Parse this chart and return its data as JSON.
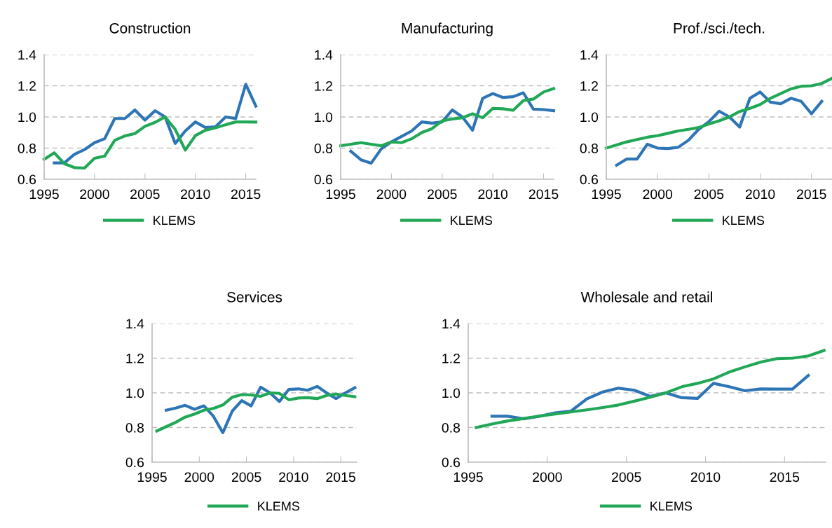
{
  "chart_data": [
    {
      "type": "line",
      "title": "Construction",
      "xlim": [
        1995,
        2016
      ],
      "xticks": [
        1995,
        2000,
        2005,
        2010,
        2015
      ],
      "ylim": [
        0.6,
        1.4
      ],
      "yticks": [
        {
          "value": 0.6,
          "label": "0.6"
        },
        {
          "value": 0.8,
          "label": "0.8"
        },
        {
          "value": 1.0,
          "label": "1.0"
        },
        {
          "value": 1.2,
          "label": "1.2"
        },
        {
          "value": 1.4,
          "label": "1.4"
        }
      ],
      "grid": "y",
      "legend": "bottom",
      "series": [
        {
          "color": "#2e75b6",
          "x": [
            1996,
            1997,
            1998,
            1999,
            2000,
            2001,
            2002,
            2003,
            2004,
            2005,
            2006,
            2007,
            2008,
            2009,
            2010,
            2011,
            2012,
            2013,
            2014,
            2015,
            2016
          ],
          "values": [
            0.705,
            0.705,
            0.76,
            0.79,
            0.835,
            0.86,
            0.99,
            0.99,
            1.045,
            0.98,
            1.04,
            1.0,
            0.83,
            0.91,
            0.968,
            0.932,
            0.937,
            1.0,
            0.99,
            1.21,
            1.07
          ]
        },
        {
          "name": "KLEMS",
          "color": "#21a857",
          "x": [
            1995,
            1996,
            1997,
            1998,
            1999,
            2000,
            2001,
            2002,
            2003,
            2004,
            2005,
            2006,
            2007,
            2008,
            2009,
            2010,
            2011,
            2012,
            2013,
            2014,
            2015,
            2016
          ],
          "values": [
            0.728,
            0.77,
            0.7,
            0.675,
            0.672,
            0.735,
            0.748,
            0.85,
            0.878,
            0.893,
            0.94,
            0.965,
            1.0,
            0.92,
            0.787,
            0.88,
            0.915,
            0.93,
            0.95,
            0.968,
            0.968,
            0.967
          ]
        }
      ]
    },
    {
      "type": "line",
      "title": "Manufacturing",
      "xlim": [
        1995,
        2016
      ],
      "xticks": [
        1995,
        2000,
        2005,
        2010,
        2015
      ],
      "ylim": [
        0.6,
        1.4
      ],
      "yticks": [
        {
          "value": 0.6,
          "label": "0.6"
        },
        {
          "value": 0.8,
          "label": "0.8"
        },
        {
          "value": 1.0,
          "label": "1.0"
        },
        {
          "value": 1.2,
          "label": "1.2"
        },
        {
          "value": 1.4,
          "label": "1.4"
        }
      ],
      "grid": "y",
      "legend": "bottom",
      "series": [
        {
          "color": "#2e75b6",
          "x": [
            1996,
            1997,
            1998,
            1999,
            2000,
            2001,
            2002,
            2003,
            2004,
            2005,
            2006,
            2007,
            2008,
            2009,
            2010,
            2011,
            2012,
            2013,
            2014,
            2015,
            2016
          ],
          "values": [
            0.78,
            0.725,
            0.703,
            0.795,
            0.84,
            0.875,
            0.91,
            0.968,
            0.96,
            0.968,
            1.045,
            1.0,
            0.915,
            1.12,
            1.15,
            1.125,
            1.13,
            1.155,
            1.05,
            1.047,
            1.04
          ]
        },
        {
          "name": "KLEMS",
          "color": "#21a857",
          "x": [
            1995,
            1996,
            1997,
            1998,
            1999,
            2000,
            2001,
            2002,
            2003,
            2004,
            2005,
            2006,
            2007,
            2008,
            2009,
            2010,
            2011,
            2012,
            2013,
            2014,
            2015,
            2016
          ],
          "values": [
            0.815,
            0.825,
            0.835,
            0.825,
            0.815,
            0.84,
            0.835,
            0.86,
            0.9,
            0.925,
            0.975,
            0.987,
            0.995,
            1.02,
            0.995,
            1.055,
            1.052,
            1.043,
            1.105,
            1.115,
            1.16,
            1.182
          ]
        }
      ]
    },
    {
      "type": "line",
      "title": "Prof./sci./tech.",
      "xlim": [
        1995,
        2017
      ],
      "xticks": [
        1995,
        2000,
        2005,
        2010,
        2015
      ],
      "ylim": [
        0.6,
        1.4
      ],
      "yticks": [
        {
          "value": 0.6,
          "label": "0.6"
        },
        {
          "value": 0.8,
          "label": "0.8"
        },
        {
          "value": 1.0,
          "label": "1.0"
        },
        {
          "value": 1.2,
          "label": "1.2"
        },
        {
          "value": 1.4,
          "label": "1.4"
        }
      ],
      "grid": "y",
      "legend": "bottom",
      "series": [
        {
          "color": "#2e75b6",
          "x": [
            1996,
            1997,
            1998,
            1999,
            2000,
            2001,
            2002,
            2003,
            2004,
            2005,
            2006,
            2007,
            2008,
            2009,
            2010,
            2011,
            2012,
            2013,
            2014,
            2015,
            2016
          ],
          "values": [
            0.69,
            0.73,
            0.73,
            0.825,
            0.8,
            0.797,
            0.805,
            0.85,
            0.92,
            0.97,
            1.037,
            1.0,
            0.935,
            1.12,
            1.16,
            1.095,
            1.085,
            1.12,
            1.1,
            1.02,
            1.1
          ]
        },
        {
          "name": "KLEMS",
          "color": "#21a857",
          "x": [
            1995,
            1996,
            1997,
            1998,
            1999,
            2000,
            2001,
            2002,
            2003,
            2004,
            2005,
            2006,
            2007,
            2008,
            2009,
            2010,
            2011,
            2012,
            2013,
            2014,
            2015,
            2016,
            2017
          ],
          "values": [
            0.8,
            0.82,
            0.84,
            0.855,
            0.87,
            0.88,
            0.895,
            0.91,
            0.92,
            0.932,
            0.955,
            0.975,
            1.0,
            1.035,
            1.055,
            1.08,
            1.12,
            1.15,
            1.18,
            1.197,
            1.2,
            1.215,
            1.248
          ]
        }
      ]
    },
    {
      "type": "line",
      "title": "Services",
      "xlim": [
        1995,
        2016.7
      ],
      "xticks": [
        1995,
        2000,
        2005,
        2010,
        2015
      ],
      "ylim": [
        0.6,
        1.4
      ],
      "yticks": [
        {
          "value": 0.6,
          "label": "0.6"
        },
        {
          "value": 0.8,
          "label": "0.8"
        },
        {
          "value": 1.0,
          "label": "1.0"
        },
        {
          "value": 1.2,
          "label": "1.2"
        },
        {
          "value": 1.4,
          "label": "1.4"
        }
      ],
      "grid": "y",
      "legend": "bottom",
      "series": [
        {
          "color": "#2e75b6",
          "x": [
            1996.5,
            1997.5,
            1998.5,
            1999.5,
            2000.5,
            2001.5,
            2002.5,
            2003.5,
            2004.5,
            2005.5,
            2006.5,
            2007.5,
            2008.5,
            2009.5,
            2010.5,
            2011.5,
            2012.5,
            2013.5,
            2014.5,
            2015.5,
            2016.5
          ],
          "values": [
            0.9,
            0.912,
            0.928,
            0.905,
            0.925,
            0.865,
            0.77,
            0.895,
            0.955,
            0.925,
            1.033,
            1.0,
            0.95,
            1.02,
            1.023,
            1.015,
            1.037,
            1.0,
            0.967,
            1.0,
            1.03
          ]
        },
        {
          "name": "KLEMS",
          "color": "#21a857",
          "x": [
            1995.5,
            1996.5,
            1997.5,
            1998.5,
            1999.5,
            2000.5,
            2001.5,
            2002.5,
            2003.5,
            2004.5,
            2005.5,
            2006.5,
            2007.5,
            2008.5,
            2009.5,
            2010.5,
            2011.5,
            2012.5,
            2013.5,
            2014.5,
            2015.5,
            2016.5
          ],
          "values": [
            0.78,
            0.805,
            0.83,
            0.86,
            0.878,
            0.9,
            0.91,
            0.93,
            0.975,
            0.99,
            0.988,
            0.98,
            1.0,
            0.997,
            0.96,
            0.97,
            0.972,
            0.967,
            0.985,
            0.993,
            0.985,
            0.978
          ]
        }
      ]
    },
    {
      "type": "line",
      "title": "Wholesale and retail",
      "xlim": [
        1995,
        2017.6
      ],
      "xticks": [
        1995,
        2000,
        2005,
        2010,
        2015
      ],
      "ylim": [
        0.6,
        1.4
      ],
      "yticks": [
        {
          "value": 0.6,
          "label": "0.6"
        },
        {
          "value": 0.8,
          "label": "0.8"
        },
        {
          "value": 1.0,
          "label": "1.0"
        },
        {
          "value": 1.2,
          "label": "1.2"
        },
        {
          "value": 1.4,
          "label": "1.4"
        }
      ],
      "grid": "y",
      "legend": "bottom",
      "series": [
        {
          "color": "#2e75b6",
          "x": [
            1996.5,
            1997.5,
            1998.5,
            1999.5,
            2000.5,
            2001.5,
            2002.5,
            2003.5,
            2004.5,
            2005.5,
            2006.5,
            2007.5,
            2008.5,
            2009.5,
            2010.5,
            2011.5,
            2012.5,
            2013.5,
            2014.5,
            2015.5,
            2016.5
          ],
          "values": [
            0.865,
            0.865,
            0.85,
            0.865,
            0.885,
            0.895,
            0.965,
            1.005,
            1.027,
            1.015,
            0.98,
            1.0,
            0.972,
            0.968,
            1.055,
            1.035,
            1.012,
            1.023,
            1.022,
            1.022,
            1.1
          ]
        },
        {
          "name": "KLEMS",
          "color": "#21a857",
          "x": [
            1995.5,
            1996.5,
            1997.5,
            1998.5,
            1999.5,
            2000.5,
            2001.5,
            2002.5,
            2003.5,
            2004.5,
            2005.5,
            2006.5,
            2007.5,
            2008.5,
            2009.5,
            2010.5,
            2011.5,
            2012.5,
            2013.5,
            2014.5,
            2015.5,
            2016.5,
            2017.5
          ],
          "values": [
            0.8,
            0.82,
            0.838,
            0.852,
            0.866,
            0.878,
            0.89,
            0.902,
            0.915,
            0.93,
            0.952,
            0.975,
            1.0,
            1.035,
            1.055,
            1.08,
            1.12,
            1.15,
            1.178,
            1.197,
            1.2,
            1.213,
            1.245
          ]
        }
      ]
    }
  ]
}
